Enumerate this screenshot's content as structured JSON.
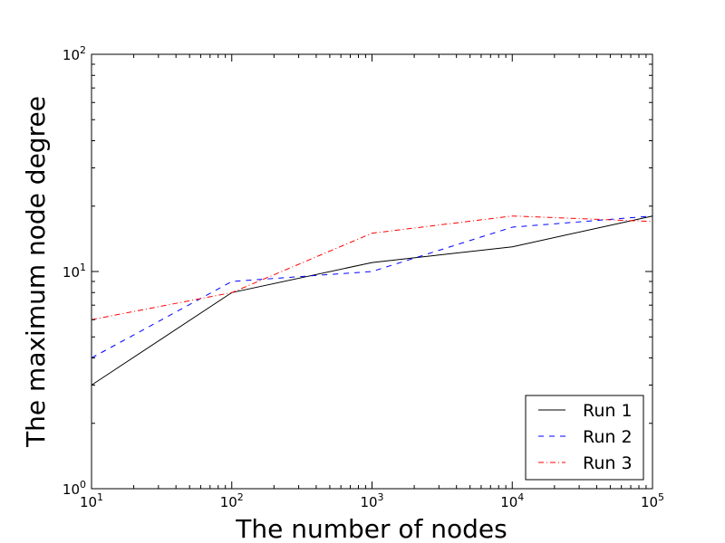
{
  "chart_data": {
    "type": "line",
    "title": "",
    "xlabel": "The number of nodes",
    "ylabel": "The maximum node degree",
    "xscale": "log",
    "yscale": "log",
    "xlim": [
      10,
      100000
    ],
    "ylim": [
      1,
      100
    ],
    "grid": false,
    "legend_position": "lower-right",
    "x_ticks": [
      {
        "base": "10",
        "exp": "1",
        "value": 10
      },
      {
        "base": "10",
        "exp": "2",
        "value": 100
      },
      {
        "base": "10",
        "exp": "3",
        "value": 1000
      },
      {
        "base": "10",
        "exp": "4",
        "value": 10000
      },
      {
        "base": "10",
        "exp": "5",
        "value": 100000
      }
    ],
    "y_ticks": [
      {
        "base": "10",
        "exp": "0",
        "value": 1
      },
      {
        "base": "10",
        "exp": "1",
        "value": 10
      },
      {
        "base": "10",
        "exp": "2",
        "value": 100
      }
    ],
    "series": [
      {
        "name": "Run 1",
        "color": "#000000",
        "style": "solid",
        "x": [
          10,
          100,
          1000,
          10000,
          100000,
          100000
        ],
        "y": [
          3,
          8,
          11,
          13,
          18,
          15
        ]
      },
      {
        "name": "Run 2",
        "color": "#0000ff",
        "style": "dashed",
        "x": [
          10,
          100,
          1000,
          10000,
          100000
        ],
        "y": [
          4,
          9,
          10,
          16,
          18
        ]
      },
      {
        "name": "Run 3",
        "color": "#ff0000",
        "style": "dashdot",
        "x": [
          10,
          100,
          1000,
          10000,
          100000
        ],
        "y": [
          6,
          8,
          15,
          18,
          17
        ]
      }
    ]
  }
}
